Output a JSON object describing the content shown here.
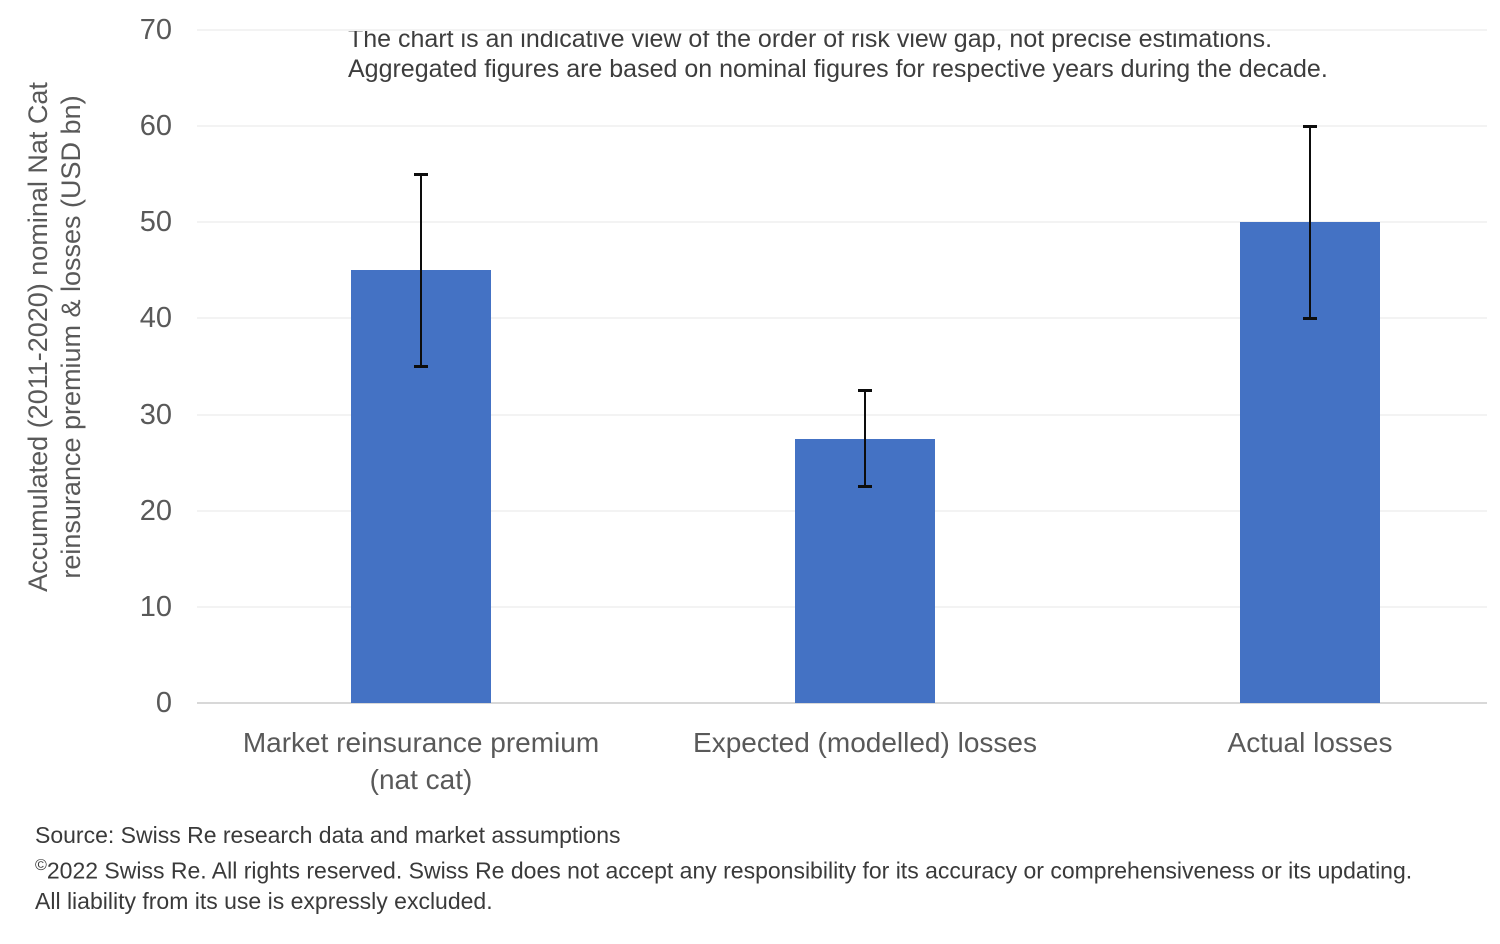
{
  "chart_data": {
    "type": "bar",
    "title": "",
    "annotations": [
      "The chart is an indicative view of the order of risk view gap, not precise estimations.",
      "Aggregated figures are based on nominal figures for respective years during the decade."
    ],
    "categories": [
      "Market reinsurance premium (nat cat)",
      "Expected (modelled) losses",
      "Actual losses"
    ],
    "categories_lines": [
      [
        "Market reinsurance premium",
        "(nat cat)"
      ],
      [
        "Expected (modelled) losses"
      ],
      [
        "Actual losses"
      ]
    ],
    "values": [
      45,
      27.5,
      50
    ],
    "error_bars": [
      {
        "low": 35,
        "high": 55
      },
      {
        "low": 22.5,
        "high": 32.5
      },
      {
        "low": 40,
        "high": 60
      }
    ],
    "ylabel": "Accumulated (2011-2020) nominal Nat Cat reinsurance premium & losses (USD bn)",
    "ylabel_lines": [
      "Accumulated (2011-2020) nominal Nat Cat",
      "reinsurance premium & losses (USD bn)"
    ],
    "xlabel": "",
    "ylim": [
      0,
      70
    ],
    "yticks": [
      0,
      10,
      20,
      30,
      40,
      50,
      60,
      70
    ],
    "grid": true,
    "legend": false,
    "bar_color": "#4472c4",
    "error_bar_color": "#0d0d0d"
  },
  "footer": {
    "source": "Source: Swiss Re research data and market assumptions",
    "copyright_symbol": "©",
    "copyright_text": "2022 Swiss Re. All rights reserved. Swiss Re does not accept any responsibility for its accuracy or comprehensiveness or its updating.",
    "liability_text": "All liability from its use is expressly excluded."
  }
}
